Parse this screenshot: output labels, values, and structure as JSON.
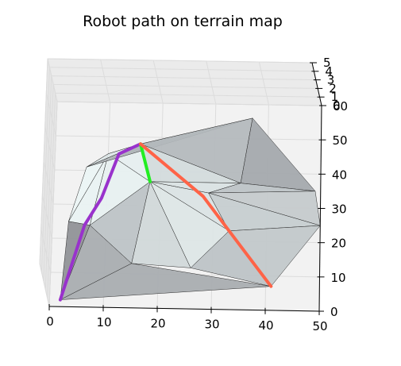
{
  "chart_data": {
    "type": "3d-surface",
    "title": "Robot path on terrain map",
    "xlabel": "",
    "ylabel": "",
    "zlabel": "",
    "xlim": [
      0,
      50
    ],
    "ylim": [
      0,
      60
    ],
    "zlim": [
      0,
      5
    ],
    "x_ticks": [
      "0",
      "10",
      "20",
      "30",
      "40",
      "50"
    ],
    "y_ticks": [
      "0",
      "10",
      "20",
      "30",
      "40",
      "50",
      "60"
    ],
    "z_ticks": [
      "0",
      "1",
      "2",
      "3",
      "4",
      "5"
    ],
    "grid": true,
    "terrain_vertices": [
      {
        "x": 2,
        "y": 2,
        "z": 0
      },
      {
        "x": 3,
        "y": 25,
        "z": 0
      },
      {
        "x": 6,
        "y": 41,
        "z": 0
      },
      {
        "x": 10,
        "y": 45,
        "z": 0
      },
      {
        "x": 16,
        "y": 48,
        "z": 0
      },
      {
        "x": 18,
        "y": 37,
        "z": 0
      },
      {
        "x": 29,
        "y": 34,
        "z": 0
      },
      {
        "x": 33,
        "y": 23,
        "z": 0
      },
      {
        "x": 41,
        "y": 7,
        "z": 0
      },
      {
        "x": 26,
        "y": 12,
        "z": 0
      },
      {
        "x": 15,
        "y": 13,
        "z": 0
      },
      {
        "x": 37,
        "y": 56,
        "z": 0
      },
      {
        "x": 35,
        "y": 37,
        "z": 0
      },
      {
        "x": 49,
        "y": 35,
        "z": 0
      },
      {
        "x": 50,
        "y": 25,
        "z": 0
      },
      {
        "x": 7,
        "y": 24,
        "z": 0
      },
      {
        "x": 5,
        "y": 6,
        "z": 0
      }
    ],
    "terrain_faces": [
      {
        "v": [
          0,
          15,
          1
        ],
        "shade": 0.25
      },
      {
        "v": [
          0,
          15,
          10
        ],
        "shade": 0.45
      },
      {
        "v": [
          0,
          10,
          8
        ],
        "shade": 0.45
      },
      {
        "v": [
          15,
          5,
          10
        ],
        "shade": 0.62
      },
      {
        "v": [
          10,
          5,
          9
        ],
        "shade": 0.78
      },
      {
        "v": [
          5,
          6,
          7
        ],
        "shade": 0.86
      },
      {
        "v": [
          5,
          7,
          9
        ],
        "shade": 0.88
      },
      {
        "v": [
          9,
          7,
          8
        ],
        "shade": 0.62
      },
      {
        "v": [
          1,
          15,
          3
        ],
        "shade": 0.98
      },
      {
        "v": [
          15,
          3,
          5
        ],
        "shade": 0.96
      },
      {
        "v": [
          1,
          2,
          3
        ],
        "shade": 0.99
      },
      {
        "v": [
          3,
          4,
          5
        ],
        "shade": 0.95
      },
      {
        "v": [
          2,
          4,
          3
        ],
        "shade": 0.9
      },
      {
        "v": [
          2,
          11,
          4
        ],
        "shade": 0.5
      },
      {
        "v": [
          4,
          11,
          12
        ],
        "shade": 0.55
      },
      {
        "v": [
          4,
          12,
          5
        ],
        "shade": 0.8
      },
      {
        "v": [
          5,
          12,
          6
        ],
        "shade": 0.85
      },
      {
        "v": [
          12,
          11,
          13
        ],
        "shade": 0.42
      },
      {
        "v": [
          12,
          13,
          6
        ],
        "shade": 0.62
      },
      {
        "v": [
          6,
          13,
          14
        ],
        "shade": 0.68
      },
      {
        "v": [
          6,
          14,
          7
        ],
        "shade": 0.7
      },
      {
        "v": [
          7,
          14,
          8
        ],
        "shade": 0.66
      }
    ],
    "paths": [
      {
        "color": "#9932cc",
        "points": [
          {
            "x": 2,
            "y": 2,
            "z": 0
          },
          {
            "x": 6,
            "y": 24,
            "z": 0
          },
          {
            "x": 9,
            "y": 32,
            "z": 0
          },
          {
            "x": 12,
            "y": 45,
            "z": 0
          },
          {
            "x": 16,
            "y": 48,
            "z": 0
          }
        ]
      },
      {
        "color": "#22ee22",
        "points": [
          {
            "x": 16,
            "y": 48,
            "z": 0
          },
          {
            "x": 18,
            "y": 37,
            "z": 0
          }
        ]
      },
      {
        "color": "#ff6347",
        "points": [
          {
            "x": 16,
            "y": 48,
            "z": 0
          },
          {
            "x": 28,
            "y": 33,
            "z": 0
          },
          {
            "x": 33,
            "y": 23,
            "z": 0
          },
          {
            "x": 41,
            "y": 7,
            "z": 0
          }
        ]
      }
    ]
  }
}
